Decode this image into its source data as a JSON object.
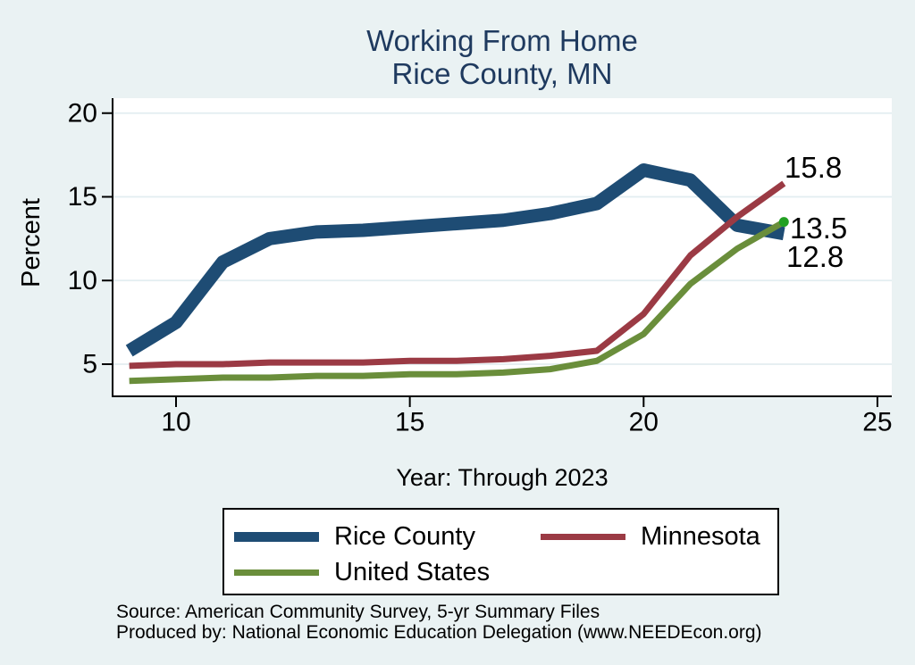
{
  "title": {
    "line1": "Working From Home",
    "line2": "Rice County, MN"
  },
  "chart_data": {
    "type": "line",
    "title": "Working From Home Rice County, MN",
    "xlabel": "Year: Through 2023",
    "ylabel": "Percent",
    "x": [
      9,
      10,
      11,
      12,
      13,
      14,
      15,
      16,
      17,
      18,
      19,
      20,
      21,
      22,
      23
    ],
    "x_ticks": [
      10,
      15,
      20,
      25
    ],
    "y_ticks": [
      5,
      10,
      15,
      20
    ],
    "x_range": [
      8.6,
      25.3
    ],
    "y_range": [
      3.1,
      20.9
    ],
    "grid": "horizontal",
    "legend_position": "bottom",
    "series": [
      {
        "name": "Rice County",
        "color": "#1e4c74",
        "line_width": 15,
        "values": [
          5.8,
          7.5,
          11.1,
          12.5,
          12.9,
          13.0,
          13.2,
          13.4,
          13.6,
          14.0,
          14.6,
          16.6,
          16.0,
          13.3,
          12.8
        ]
      },
      {
        "name": "Minnesota",
        "color": "#9b3a44",
        "line_width": 7,
        "values": [
          4.9,
          5.0,
          5.0,
          5.1,
          5.1,
          5.1,
          5.2,
          5.2,
          5.3,
          5.5,
          5.8,
          8.0,
          11.5,
          13.8,
          15.8
        ]
      },
      {
        "name": "United States",
        "color": "#6a8e3b",
        "line_width": 7,
        "end_dot_color": "#22a022",
        "values": [
          4.0,
          4.1,
          4.2,
          4.2,
          4.3,
          4.3,
          4.4,
          4.4,
          4.5,
          4.7,
          5.2,
          6.8,
          9.8,
          11.9,
          13.5
        ]
      }
    ],
    "annotations": [
      {
        "text": "15.8"
      },
      {
        "text": "13.5"
      },
      {
        "text": "12.8"
      }
    ]
  },
  "source": {
    "line1": "Source: American Community Survey, 5-yr Summary Files",
    "line2": "Produced by: National Economic Education Delegation (www.NEEDEcon.org)"
  },
  "colors": {
    "background": "#eaf2f3",
    "plot_background": "#ffffff",
    "gridline": "#e2edf0",
    "axis": "#000000",
    "title_text": "#1f3a5f",
    "tick_text": "#000000"
  }
}
